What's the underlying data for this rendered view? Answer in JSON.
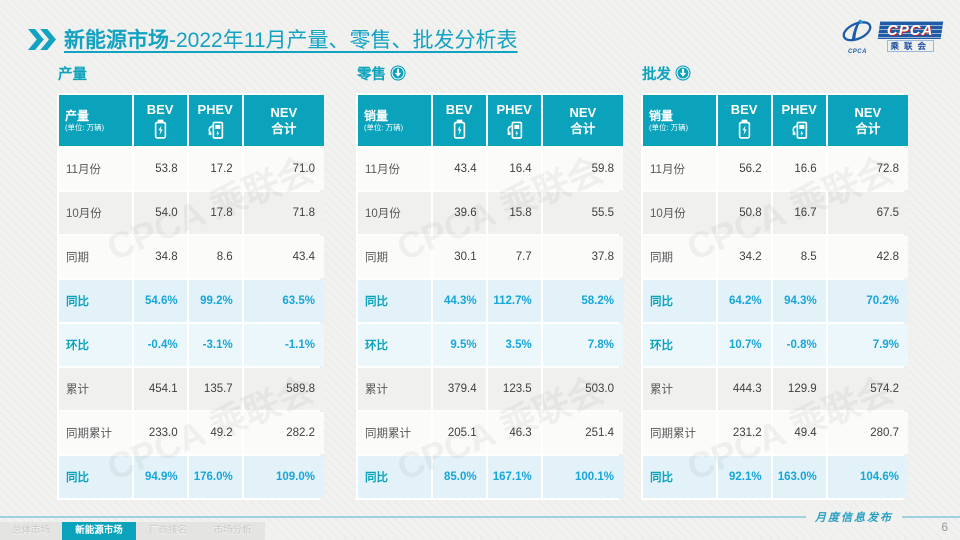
{
  "header": {
    "title_bold": "新能源市场",
    "title_rest": "-2022年11月产量、零售、批发分析表",
    "logo": {
      "acronym": "CPCA",
      "org_cn": "乘联会",
      "mark_text": "CPCA"
    }
  },
  "watermark_text": "CPCA 乘联会",
  "footer": {
    "release_label": "月度信息发布",
    "page_number": "6",
    "tabs": [
      {
        "label": "总体市场",
        "active": false
      },
      {
        "label": "新能源市场",
        "active": true
      },
      {
        "label": "厂商排名",
        "active": false
      },
      {
        "label": "市场分析",
        "active": false
      }
    ]
  },
  "colors": {
    "teal": "#0ba3bc",
    "percent_blue": "#17a6d9",
    "row_blue": "#e2f2f8",
    "row_blue_alt": "#ecf7fb",
    "logo_navy": "#1e5aa6"
  },
  "chart_data": [
    {
      "type": "table",
      "section_title": "产量",
      "trend": "none",
      "measure_label": "产量",
      "unit_label": "(单位: 万辆)",
      "columns": [
        {
          "label": "BEV",
          "icon": "battery-icon"
        },
        {
          "label": "PHEV",
          "icon": "charger-icon"
        },
        {
          "label": "NEV",
          "sublabel": "合计"
        }
      ],
      "rows": [
        {
          "label": "11月份",
          "values": [
            "53.8",
            "17.2",
            "71.0"
          ],
          "style": "plain"
        },
        {
          "label": "10月份",
          "values": [
            "54.0",
            "17.8",
            "71.8"
          ],
          "style": "shade"
        },
        {
          "label": "同期",
          "values": [
            "34.8",
            "8.6",
            "43.4"
          ],
          "style": "plain"
        },
        {
          "label": "同比",
          "values": [
            "54.6%",
            "99.2%",
            "63.5%"
          ],
          "style": "pct"
        },
        {
          "label": "环比",
          "values": [
            "-0.4%",
            "-3.1%",
            "-1.1%"
          ],
          "style": "pct_alt"
        },
        {
          "label": "累计",
          "values": [
            "454.1",
            "135.7",
            "589.8"
          ],
          "style": "shade"
        },
        {
          "label": "同期累计",
          "values": [
            "233.0",
            "49.2",
            "282.2"
          ],
          "style": "plain"
        },
        {
          "label": "同比",
          "values": [
            "94.9%",
            "176.0%",
            "109.0%"
          ],
          "style": "pct"
        }
      ]
    },
    {
      "type": "table",
      "section_title": "零售",
      "trend": "down",
      "measure_label": "销量",
      "unit_label": "(单位: 万辆)",
      "columns": [
        {
          "label": "BEV",
          "icon": "battery-icon"
        },
        {
          "label": "PHEV",
          "icon": "charger-icon"
        },
        {
          "label": "NEV",
          "sublabel": "合计"
        }
      ],
      "rows": [
        {
          "label": "11月份",
          "values": [
            "43.4",
            "16.4",
            "59.8"
          ],
          "style": "plain"
        },
        {
          "label": "10月份",
          "values": [
            "39.6",
            "15.8",
            "55.5"
          ],
          "style": "shade"
        },
        {
          "label": "同期",
          "values": [
            "30.1",
            "7.7",
            "37.8"
          ],
          "style": "plain"
        },
        {
          "label": "同比",
          "values": [
            "44.3%",
            "112.7%",
            "58.2%"
          ],
          "style": "pct"
        },
        {
          "label": "环比",
          "values": [
            "9.5%",
            "3.5%",
            "7.8%"
          ],
          "style": "pct_alt"
        },
        {
          "label": "累计",
          "values": [
            "379.4",
            "123.5",
            "503.0"
          ],
          "style": "shade"
        },
        {
          "label": "同期累计",
          "values": [
            "205.1",
            "46.3",
            "251.4"
          ],
          "style": "plain"
        },
        {
          "label": "同比",
          "values": [
            "85.0%",
            "167.1%",
            "100.1%"
          ],
          "style": "pct"
        }
      ]
    },
    {
      "type": "table",
      "section_title": "批发",
      "trend": "down",
      "measure_label": "销量",
      "unit_label": "(单位: 万辆)",
      "columns": [
        {
          "label": "BEV",
          "icon": "battery-icon"
        },
        {
          "label": "PHEV",
          "icon": "charger-icon"
        },
        {
          "label": "NEV",
          "sublabel": "合计"
        }
      ],
      "rows": [
        {
          "label": "11月份",
          "values": [
            "56.2",
            "16.6",
            "72.8"
          ],
          "style": "plain"
        },
        {
          "label": "10月份",
          "values": [
            "50.8",
            "16.7",
            "67.5"
          ],
          "style": "shade"
        },
        {
          "label": "同期",
          "values": [
            "34.2",
            "8.5",
            "42.8"
          ],
          "style": "plain"
        },
        {
          "label": "同比",
          "values": [
            "64.2%",
            "94.3%",
            "70.2%"
          ],
          "style": "pct"
        },
        {
          "label": "环比",
          "values": [
            "10.7%",
            "-0.8%",
            "7.9%"
          ],
          "style": "pct_alt"
        },
        {
          "label": "累计",
          "values": [
            "444.3",
            "129.9",
            "574.2"
          ],
          "style": "shade"
        },
        {
          "label": "同期累计",
          "values": [
            "231.2",
            "49.4",
            "280.7"
          ],
          "style": "plain"
        },
        {
          "label": "同比",
          "values": [
            "92.1%",
            "163.0%",
            "104.6%"
          ],
          "style": "pct"
        }
      ]
    }
  ]
}
